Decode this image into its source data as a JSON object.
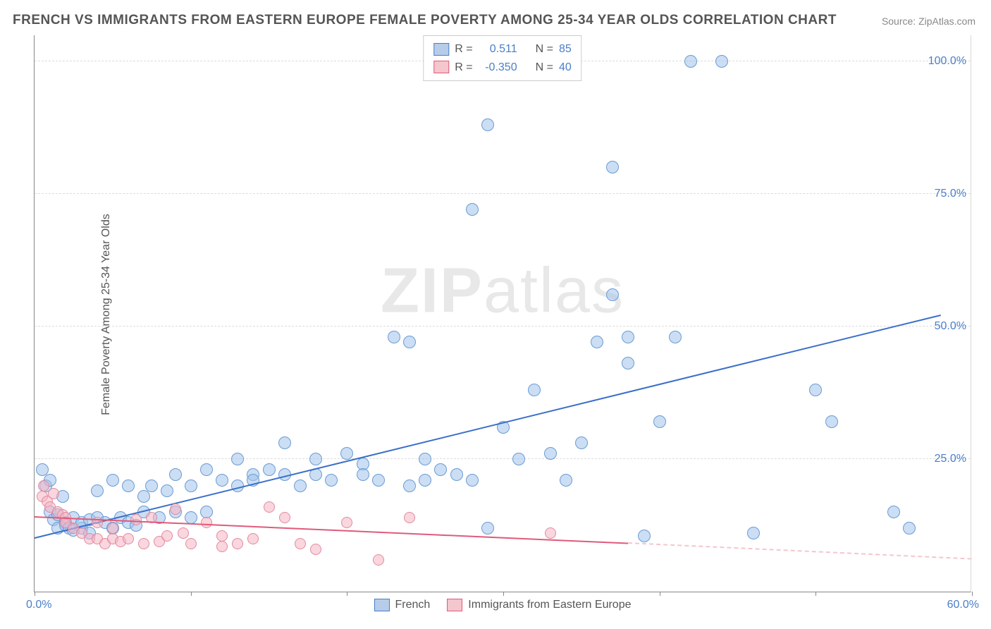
{
  "title": "FRENCH VS IMMIGRANTS FROM EASTERN EUROPE FEMALE POVERTY AMONG 25-34 YEAR OLDS CORRELATION CHART",
  "source": "Source: ZipAtlas.com",
  "y_axis_label": "Female Poverty Among 25-34 Year Olds",
  "watermark_bold": "ZIP",
  "watermark_rest": "atlas",
  "chart": {
    "type": "scatter",
    "xlim": [
      0,
      60
    ],
    "ylim": [
      0,
      105
    ],
    "x_ticks": [
      0,
      10,
      20,
      30,
      40,
      50,
      60
    ],
    "y_ticks": [
      25,
      50,
      75,
      100
    ],
    "x_tick_labels": [
      "0.0%",
      "60.0%"
    ],
    "y_tick_labels": [
      "25.0%",
      "50.0%",
      "75.0%",
      "100.0%"
    ],
    "grid_color": "#dcdcdc",
    "background_color": "#ffffff",
    "axis_label_color": "#4a7ec9",
    "title_color": "#555555",
    "title_fontsize": 19,
    "label_fontsize": 16
  },
  "series": [
    {
      "name": "French",
      "fill": "rgba(160,195,235,0.55)",
      "stroke": "#6a9bd4",
      "line_color": "#3a6fc9",
      "marker_r": 9,
      "R": "0.511",
      "N": "85",
      "trend": {
        "x1": 0,
        "y1": 10,
        "x2": 58,
        "y2": 52
      },
      "points": [
        [
          0.5,
          23
        ],
        [
          0.7,
          20
        ],
        [
          1,
          21
        ],
        [
          1,
          15
        ],
        [
          1.2,
          13.5
        ],
        [
          1.5,
          14.5
        ],
        [
          1.5,
          12
        ],
        [
          1.8,
          18
        ],
        [
          2,
          13
        ],
        [
          2,
          12.5
        ],
        [
          2.2,
          12
        ],
        [
          2.5,
          11.5
        ],
        [
          2.5,
          14
        ],
        [
          3,
          12
        ],
        [
          3,
          13
        ],
        [
          3.5,
          13.5
        ],
        [
          3.5,
          11
        ],
        [
          4,
          14
        ],
        [
          4,
          19
        ],
        [
          4.5,
          13
        ],
        [
          5,
          21
        ],
        [
          5,
          12
        ],
        [
          5.5,
          14
        ],
        [
          6,
          13
        ],
        [
          6,
          20
        ],
        [
          6.5,
          12.5
        ],
        [
          7,
          18
        ],
        [
          7,
          15
        ],
        [
          7.5,
          20
        ],
        [
          8,
          14
        ],
        [
          8.5,
          19
        ],
        [
          9,
          22
        ],
        [
          9,
          15
        ],
        [
          10,
          20
        ],
        [
          10,
          14
        ],
        [
          11,
          23
        ],
        [
          11,
          15
        ],
        [
          12,
          21
        ],
        [
          13,
          25
        ],
        [
          13,
          20
        ],
        [
          14,
          22
        ],
        [
          14,
          21
        ],
        [
          15,
          23
        ],
        [
          16,
          28
        ],
        [
          16,
          22
        ],
        [
          17,
          20
        ],
        [
          18,
          25
        ],
        [
          18,
          22
        ],
        [
          19,
          21
        ],
        [
          20,
          26
        ],
        [
          21,
          24
        ],
        [
          21,
          22
        ],
        [
          22,
          21
        ],
        [
          23,
          48
        ],
        [
          24,
          47
        ],
        [
          24,
          20
        ],
        [
          25,
          25
        ],
        [
          25,
          21
        ],
        [
          26,
          23
        ],
        [
          27,
          22
        ],
        [
          28,
          21
        ],
        [
          28,
          72
        ],
        [
          29,
          88
        ],
        [
          29,
          12
        ],
        [
          30,
          31
        ],
        [
          31,
          25
        ],
        [
          32,
          38
        ],
        [
          33,
          26
        ],
        [
          34,
          21
        ],
        [
          35,
          28
        ],
        [
          36,
          47
        ],
        [
          37,
          56
        ],
        [
          37,
          80
        ],
        [
          38,
          43
        ],
        [
          38,
          48
        ],
        [
          39,
          10.5
        ],
        [
          40,
          32
        ],
        [
          41,
          48
        ],
        [
          42,
          100
        ],
        [
          44,
          100
        ],
        [
          46,
          11
        ],
        [
          50,
          38
        ],
        [
          51,
          32
        ],
        [
          55,
          15
        ],
        [
          56,
          12
        ]
      ]
    },
    {
      "name": "Immigrants from Eastern Europe",
      "fill": "rgba(245,180,195,0.55)",
      "stroke": "#e08aa0",
      "line_color": "#e05a7a",
      "marker_r": 8,
      "R": "-0.350",
      "N": "40",
      "trend": {
        "x1": 0,
        "y1": 14,
        "x2": 38,
        "y2": 9
      },
      "trend_dash": {
        "x1": 38,
        "y1": 9,
        "x2": 60,
        "y2": 6
      },
      "points": [
        [
          0.5,
          18
        ],
        [
          0.6,
          20
        ],
        [
          0.8,
          17
        ],
        [
          1,
          16
        ],
        [
          1.2,
          18.5
        ],
        [
          1.5,
          15
        ],
        [
          1.8,
          14.5
        ],
        [
          2,
          14
        ],
        [
          2,
          13
        ],
        [
          2.5,
          12
        ],
        [
          3,
          11
        ],
        [
          3.5,
          10
        ],
        [
          4,
          10
        ],
        [
          4,
          13
        ],
        [
          4.5,
          9
        ],
        [
          5,
          12
        ],
        [
          5,
          10
        ],
        [
          5.5,
          9.5
        ],
        [
          6,
          10
        ],
        [
          6.5,
          13.5
        ],
        [
          7,
          9
        ],
        [
          7.5,
          14
        ],
        [
          8,
          9.5
        ],
        [
          8.5,
          10.5
        ],
        [
          9,
          15.5
        ],
        [
          9.5,
          11
        ],
        [
          10,
          9
        ],
        [
          11,
          13
        ],
        [
          12,
          10.5
        ],
        [
          12,
          8.5
        ],
        [
          13,
          9
        ],
        [
          14,
          10
        ],
        [
          15,
          16
        ],
        [
          16,
          14
        ],
        [
          17,
          9
        ],
        [
          18,
          8
        ],
        [
          20,
          13
        ],
        [
          22,
          6
        ],
        [
          24,
          14
        ],
        [
          33,
          11
        ]
      ]
    }
  ],
  "legend_top": {
    "r_label": "R =",
    "n_label": "N ="
  },
  "legend_bottom": [
    {
      "color": "blue",
      "label": "French"
    },
    {
      "color": "pink",
      "label": "Immigrants from Eastern Europe"
    }
  ]
}
